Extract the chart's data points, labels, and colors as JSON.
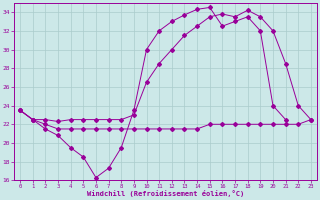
{
  "xlabel": "Windchill (Refroidissement éolien,°C)",
  "background_color": "#cce8e8",
  "line_color": "#990099",
  "grid_color": "#aacccc",
  "ylim": [
    16,
    35
  ],
  "xlim": [
    -0.5,
    23.5
  ],
  "yticks": [
    16,
    18,
    20,
    22,
    24,
    26,
    28,
    30,
    32,
    34
  ],
  "xticks": [
    0,
    1,
    2,
    3,
    4,
    5,
    6,
    7,
    8,
    9,
    10,
    11,
    12,
    13,
    14,
    15,
    16,
    17,
    18,
    19,
    20,
    21,
    22,
    23
  ],
  "series1_x": [
    0,
    1,
    2,
    3,
    4,
    5,
    6,
    7,
    8,
    9,
    10,
    11,
    12,
    13,
    14,
    15,
    16,
    17,
    18,
    19,
    20,
    21
  ],
  "series1_y": [
    23.5,
    22.5,
    21.5,
    20.8,
    19.5,
    18.5,
    16.3,
    17.3,
    19.5,
    23.5,
    30.0,
    32.0,
    33.0,
    33.7,
    34.3,
    34.5,
    32.5,
    33.0,
    33.5,
    32.0,
    24.0,
    22.5
  ],
  "series2_x": [
    0,
    1,
    2,
    3,
    4,
    5,
    6,
    7,
    8,
    9,
    10,
    11,
    12,
    13,
    14,
    15,
    16,
    17,
    18,
    19,
    20,
    21,
    22,
    23
  ],
  "series2_y": [
    23.5,
    22.5,
    22.5,
    22.3,
    22.5,
    22.5,
    22.5,
    22.5,
    22.5,
    23.0,
    26.5,
    28.5,
    30.0,
    31.5,
    32.5,
    33.5,
    33.8,
    33.5,
    34.2,
    33.5,
    32.0,
    28.5,
    24.0,
    22.5
  ],
  "series3_x": [
    0,
    1,
    2,
    3,
    4,
    5,
    6,
    7,
    8,
    9,
    10,
    11,
    12,
    13,
    14,
    15,
    16,
    17,
    18,
    19,
    20,
    21,
    22,
    23
  ],
  "series3_y": [
    23.5,
    22.5,
    22.0,
    21.5,
    21.5,
    21.5,
    21.5,
    21.5,
    21.5,
    21.5,
    21.5,
    21.5,
    21.5,
    21.5,
    21.5,
    22.0,
    22.0,
    22.0,
    22.0,
    22.0,
    22.0,
    22.0,
    22.0,
    22.5
  ]
}
